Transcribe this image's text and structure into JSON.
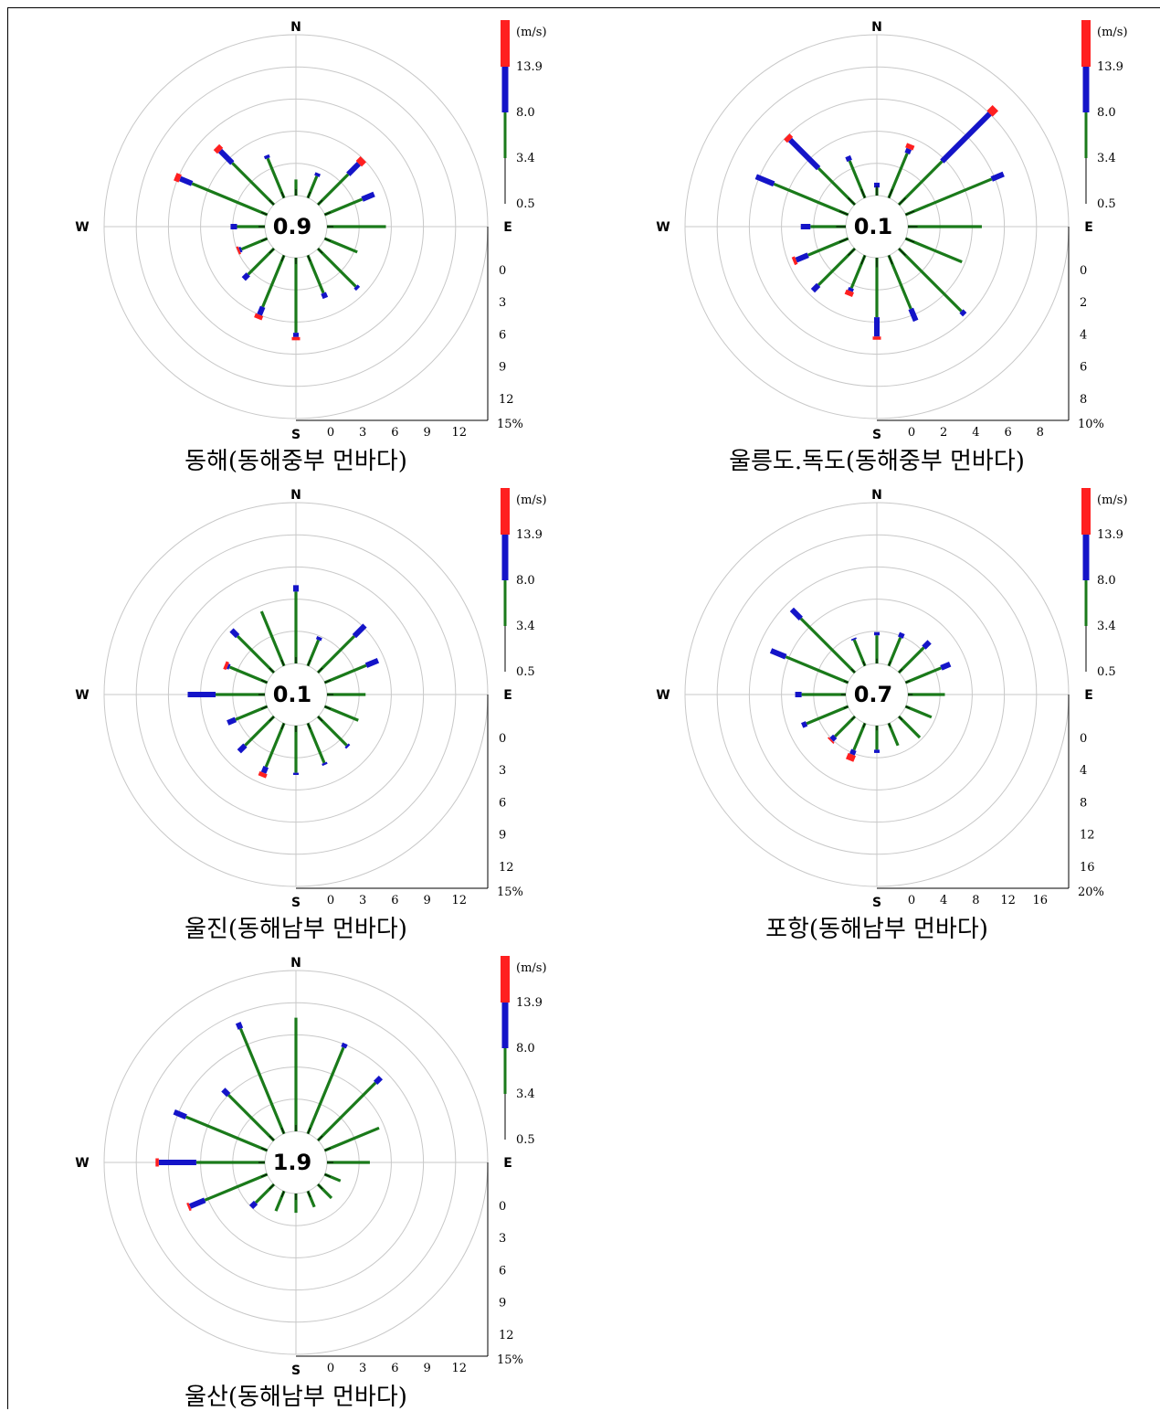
{
  "legend": {
    "unit": "(m/s)",
    "thresholds": [
      "13.9",
      "8.0",
      "3.4",
      "0.5"
    ],
    "colors": [
      "#ff2020",
      "#1414c8",
      "#1a7a1a",
      "#000000"
    ]
  },
  "directions": {
    "n": "N",
    "e": "E",
    "s": "S",
    "w": "W"
  },
  "chart_data": [
    {
      "type": "wind-rose",
      "title": "동해(동해중부 먼바다)",
      "calm": "0.9",
      "scale_max": 15,
      "tick_labels": [
        "0",
        "3",
        "6",
        "9",
        "12"
      ],
      "max_label": "15%",
      "sectors": [
        "N",
        "NNE",
        "NE",
        "ENE",
        "E",
        "ESE",
        "SE",
        "SSE",
        "S",
        "SSW",
        "SW",
        "WSW",
        "W",
        "WNW",
        "NW",
        "NNW"
      ],
      "stacks": [
        [
          0,
          1.5,
          0,
          0
        ],
        [
          0,
          2.2,
          0.3,
          0
        ],
        [
          0,
          4,
          1.4,
          0.6
        ],
        [
          0,
          3.8,
          1.2,
          0
        ],
        [
          0,
          5.5,
          0,
          0
        ],
        [
          0,
          3.3,
          0,
          0
        ],
        [
          0,
          5,
          0.3,
          0
        ],
        [
          0,
          3.8,
          0.5,
          0
        ],
        [
          0,
          7,
          0.4,
          0.3
        ],
        [
          0,
          5.2,
          0.8,
          0.4
        ],
        [
          0,
          3.4,
          0.6,
          0
        ],
        [
          0,
          2.6,
          0.2,
          0.2
        ],
        [
          0,
          2.6,
          0.6,
          0
        ],
        [
          0,
          7.6,
          1.2,
          0.5
        ],
        [
          0,
          5.5,
          1.6,
          0.5
        ],
        [
          0,
          4,
          0.3,
          0
        ]
      ]
    },
    {
      "type": "wind-rose",
      "title": "울릉도.독도(동해중부 먼바다)",
      "calm": "0.1",
      "scale_max": 10,
      "tick_labels": [
        "0",
        "2",
        "4",
        "6",
        "8"
      ],
      "max_label": "10%",
      "sectors": [
        "N",
        "NNE",
        "NE",
        "ENE",
        "E",
        "ESE",
        "SE",
        "SSE",
        "S",
        "SSW",
        "SW",
        "WSW",
        "W",
        "WNW",
        "NW",
        "NNW"
      ],
      "stacks": [
        [
          0,
          0.5,
          0.3,
          0
        ],
        [
          0,
          3,
          0.3,
          0.3
        ],
        [
          0,
          3.8,
          4.2,
          0.5
        ],
        [
          0,
          5.8,
          0.8,
          0
        ],
        [
          0,
          4.6,
          0,
          0
        ],
        [
          0,
          3.8,
          0,
          0
        ],
        [
          0,
          5.5,
          0.3,
          0
        ],
        [
          0,
          3.6,
          0.8,
          0
        ],
        [
          0,
          3.7,
          1.2,
          0.2
        ],
        [
          0,
          2.2,
          0.2,
          0.3
        ],
        [
          0,
          3.2,
          0.5,
          0
        ],
        [
          0,
          2.7,
          0.8,
          0.2
        ],
        [
          0,
          2.2,
          0.6,
          0
        ],
        [
          0,
          5,
          1.2,
          0
        ],
        [
          0,
          3.2,
          2.5,
          0.3
        ],
        [
          0,
          2.5,
          0.3,
          0
        ]
      ]
    },
    {
      "type": "wind-rose",
      "title": "울진(동해남부 먼바다)",
      "calm": "0.1",
      "scale_max": 15,
      "tick_labels": [
        "0",
        "3",
        "6",
        "9",
        "12"
      ],
      "max_label": "15%",
      "sectors": [
        "N",
        "NNE",
        "NE",
        "ENE",
        "E",
        "ESE",
        "SE",
        "SSE",
        "S",
        "SSW",
        "SW",
        "WSW",
        "W",
        "WNW",
        "NW",
        "NNW"
      ],
      "stacks": [
        [
          0,
          6.7,
          0.6,
          0
        ],
        [
          0,
          2.6,
          0.3,
          0
        ],
        [
          0,
          4.8,
          1.4,
          0
        ],
        [
          0,
          4.2,
          1.2,
          0
        ],
        [
          0,
          3.6,
          0,
          0
        ],
        [
          0,
          3.4,
          0,
          0
        ],
        [
          0,
          3.8,
          0.2,
          0
        ],
        [
          0,
          4,
          0.2,
          0
        ],
        [
          0,
          4.4,
          0.2,
          0
        ],
        [
          0,
          4.4,
          0.6,
          0.4
        ],
        [
          0,
          3.8,
          0.8,
          0
        ],
        [
          0,
          3.2,
          0.8,
          0
        ],
        [
          0,
          4.6,
          2.6,
          0
        ],
        [
          0,
          3.8,
          0.2,
          0.3
        ],
        [
          0,
          4.8,
          0.8,
          0
        ],
        [
          0,
          5.5,
          0,
          0
        ]
      ]
    },
    {
      "type": "wind-rose",
      "title": "포항(동해남부 먼바다)",
      "calm": "0.7",
      "scale_max": 20,
      "tick_labels": [
        "0",
        "4",
        "8",
        "12",
        "16"
      ],
      "max_label": "20%",
      "sectors": [
        "N",
        "NNE",
        "NE",
        "ENE",
        "E",
        "ESE",
        "SE",
        "SSE",
        "S",
        "SSW",
        "SW",
        "WSW",
        "W",
        "WNW",
        "NW",
        "NNW"
      ],
      "stacks": [
        [
          0,
          3.5,
          0.4,
          0
        ],
        [
          0,
          3.8,
          0.6,
          0
        ],
        [
          0,
          4.4,
          1,
          0
        ],
        [
          0,
          4.8,
          1.2,
          0
        ],
        [
          0,
          4.6,
          0,
          0
        ],
        [
          0,
          3.5,
          0,
          0
        ],
        [
          0,
          3.7,
          0,
          0
        ],
        [
          0,
          3,
          0,
          0
        ],
        [
          0,
          3,
          0.4,
          0
        ],
        [
          0,
          3.6,
          0.6,
          0.8
        ],
        [
          0,
          3.5,
          0.6,
          0.2
        ],
        [
          0,
          5.6,
          0.6,
          0
        ],
        [
          0,
          5.5,
          0.8,
          0
        ],
        [
          0,
          8.4,
          2,
          0
        ],
        [
          0,
          9.5,
          1.6,
          0
        ],
        [
          0,
          3.5,
          0.2,
          0
        ]
      ]
    },
    {
      "type": "wind-rose",
      "title": "울산(동해남부 먼바다)",
      "calm": "1.9",
      "scale_max": 15,
      "tick_labels": [
        "0",
        "3",
        "6",
        "9",
        "12"
      ],
      "max_label": "15%",
      "sectors": [
        "N",
        "NNE",
        "NE",
        "ENE",
        "E",
        "ESE",
        "SE",
        "SSE",
        "S",
        "SSW",
        "SW",
        "WSW",
        "W",
        "WNW",
        "NW",
        "NNW"
      ],
      "stacks": [
        [
          0,
          10.6,
          0,
          0
        ],
        [
          0,
          8.7,
          0.4,
          0
        ],
        [
          0,
          7.6,
          0.7,
          0
        ],
        [
          0,
          5.5,
          0,
          0
        ],
        [
          0,
          4,
          0,
          0
        ],
        [
          0,
          1.6,
          0,
          0
        ],
        [
          0,
          1.8,
          0,
          0
        ],
        [
          0,
          1.6,
          0,
          0
        ],
        [
          0,
          1.8,
          0,
          0
        ],
        [
          0,
          2,
          0,
          0
        ],
        [
          0,
          2.4,
          0.6,
          0
        ],
        [
          0,
          6.3,
          1.5,
          0.2
        ],
        [
          0,
          6.4,
          3.5,
          0.3
        ],
        [
          0,
          8.2,
          1.2,
          0
        ],
        [
          0,
          6,
          0.7,
          0
        ],
        [
          0,
          10.6,
          0.6,
          0
        ]
      ]
    }
  ]
}
